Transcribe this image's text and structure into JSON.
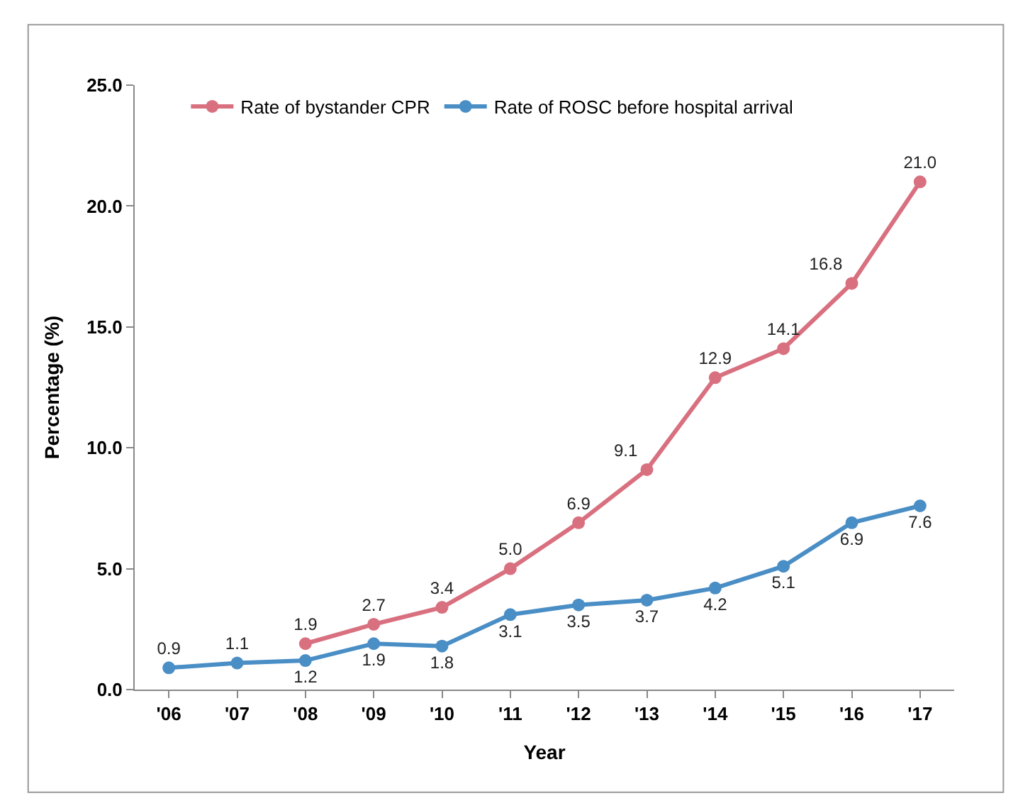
{
  "chart_data": {
    "type": "line",
    "xlabel": "Year",
    "ylabel": "Percentage (%)",
    "categories": [
      "'06",
      "'07",
      "'08",
      "'09",
      "'10",
      "'11",
      "'12",
      "'13",
      "'14",
      "'15",
      "'16",
      "'17"
    ],
    "series": [
      {
        "name": "Rate of bystander CPR",
        "color": "#d9707f",
        "values": [
          null,
          null,
          1.9,
          2.7,
          3.4,
          5.0,
          6.9,
          9.1,
          12.9,
          14.1,
          16.8,
          21.0
        ],
        "value_labels": [
          null,
          null,
          "1.9",
          "2.7",
          "3.4",
          "5.0",
          "6.9",
          "9.1",
          "12.9",
          "14.1",
          "16.8",
          "21.0"
        ]
      },
      {
        "name": "Rate of ROSC before hospital arrival",
        "color": "#4a8ec6",
        "values": [
          0.9,
          1.1,
          1.2,
          1.9,
          1.8,
          3.1,
          3.5,
          3.7,
          4.2,
          5.1,
          6.9,
          7.6
        ],
        "value_labels": [
          "0.9",
          "1.1",
          "1.2",
          "1.9",
          "1.8",
          "3.1",
          "3.5",
          "3.7",
          "4.2",
          "5.1",
          "6.9",
          "7.6"
        ]
      }
    ],
    "ylim": [
      0,
      25
    ],
    "yticks": [
      {
        "value": 0,
        "label": "0.0"
      },
      {
        "value": 5,
        "label": "5.0"
      },
      {
        "value": 10,
        "label": "10.0"
      },
      {
        "value": 15,
        "label": "15.0"
      },
      {
        "value": 20,
        "label": "20.0"
      },
      {
        "value": 25,
        "label": "25.0"
      }
    ],
    "legend": "top left",
    "marker": "circle",
    "line_style": "solid"
  }
}
